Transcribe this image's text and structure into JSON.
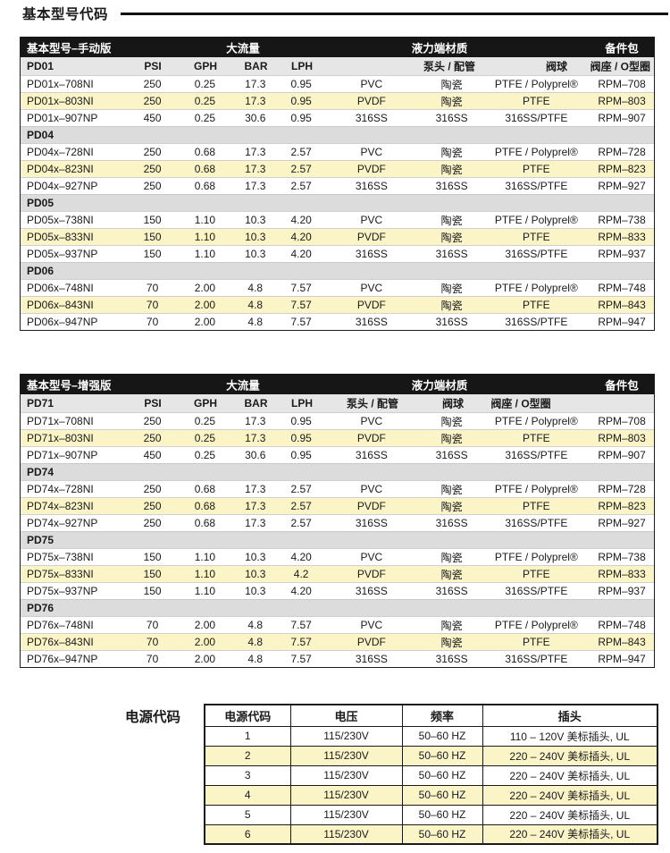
{
  "title": "基本型号代码",
  "colors": {
    "highlight_row": "#FAF4C6",
    "section_row": "#DCDCDC",
    "subheader_row": "#E6E6E6",
    "header_row": "#161616"
  },
  "model_tables": [
    {
      "header": {
        "name": "基本型号–手动版",
        "flow": "大流量",
        "material": "液力端材质",
        "spares": "备件包"
      },
      "subheader": {
        "model": "PD01",
        "psi": "PSI",
        "gph": "GPH",
        "bar": "BAR",
        "lph": "LPH",
        "head": "泵头 / 配管",
        "ball": "阀球",
        "seat": "阀座 / O型圈"
      },
      "groups": [
        {
          "section": null,
          "rows": [
            {
              "model": "PD01x–708NI",
              "psi": "250",
              "gph": "0.25",
              "bar": "17.3",
              "lph": "0.95",
              "head": "PVC",
              "ball": "陶瓷",
              "seat": "PTFE / Polyprel®",
              "rpm": "RPM–708",
              "highlight": false
            },
            {
              "model": "PD01x–803NI",
              "psi": "250",
              "gph": "0.25",
              "bar": "17.3",
              "lph": "0.95",
              "head": "PVDF",
              "ball": "陶瓷",
              "seat": "PTFE",
              "rpm": "RPM–803",
              "highlight": true
            },
            {
              "model": "PD01x–907NP",
              "psi": "450",
              "gph": "0.25",
              "bar": "30.6",
              "lph": "0.95",
              "head": "316SS",
              "ball": "316SS",
              "seat": "316SS/PTFE",
              "rpm": "RPM–907",
              "highlight": false
            }
          ]
        },
        {
          "section": "PD04",
          "rows": [
            {
              "model": "PD04x–728NI",
              "psi": "250",
              "gph": "0.68",
              "bar": "17.3",
              "lph": "2.57",
              "head": "PVC",
              "ball": "陶瓷",
              "seat": "PTFE / Polyprel®",
              "rpm": "RPM–728",
              "highlight": false
            },
            {
              "model": "PD04x–823NI",
              "psi": "250",
              "gph": "0.68",
              "bar": "17.3",
              "lph": "2.57",
              "head": "PVDF",
              "ball": "陶瓷",
              "seat": "PTFE",
              "rpm": "RPM–823",
              "highlight": true
            },
            {
              "model": "PD04x–927NP",
              "psi": "250",
              "gph": "0.68",
              "bar": "17.3",
              "lph": "2.57",
              "head": "316SS",
              "ball": "316SS",
              "seat": "316SS/PTFE",
              "rpm": "RPM–927",
              "highlight": false
            }
          ]
        },
        {
          "section": "PD05",
          "rows": [
            {
              "model": "PD05x–738NI",
              "psi": "150",
              "gph": "1.10",
              "bar": "10.3",
              "lph": "4.20",
              "head": "PVC",
              "ball": "陶瓷",
              "seat": "PTFE / Polyprel®",
              "rpm": "RPM–738",
              "highlight": false
            },
            {
              "model": "PD05x–833NI",
              "psi": "150",
              "gph": "1.10",
              "bar": "10.3",
              "lph": "4.20",
              "head": "PVDF",
              "ball": "陶瓷",
              "seat": "PTFE",
              "rpm": "RPM–833",
              "highlight": true
            },
            {
              "model": "PD05x–937NP",
              "psi": "150",
              "gph": "1.10",
              "bar": "10.3",
              "lph": "4.20",
              "head": "316SS",
              "ball": "316SS",
              "seat": "316SS/PTFE",
              "rpm": "RPM–937",
              "highlight": false
            }
          ]
        },
        {
          "section": "PD06",
          "rows": [
            {
              "model": "PD06x–748NI",
              "psi": "70",
              "gph": "2.00",
              "bar": "4.8",
              "lph": "7.57",
              "head": "PVC",
              "ball": "陶瓷",
              "seat": "PTFE / Polyprel®",
              "rpm": "RPM–748",
              "highlight": false
            },
            {
              "model": "PD06x–843NI",
              "psi": "70",
              "gph": "2.00",
              "bar": "4.8",
              "lph": "7.57",
              "head": "PVDF",
              "ball": "陶瓷",
              "seat": "PTFE",
              "rpm": "RPM–843",
              "highlight": true
            },
            {
              "model": "PD06x–947NP",
              "psi": "70",
              "gph": "2.00",
              "bar": "4.8",
              "lph": "7.57",
              "head": "316SS",
              "ball": "316SS",
              "seat": "316SS/PTFE",
              "rpm": "RPM–947",
              "highlight": false
            }
          ]
        }
      ]
    },
    {
      "header": {
        "name": "基本型号–增强版",
        "flow": "大流量",
        "material": "液力端材质",
        "spares": "备件包"
      },
      "subheader": {
        "model": "PD71",
        "psi": "PSI",
        "gph": "GPH",
        "bar": "BAR",
        "lph": "LPH",
        "head": "泵头 / 配管",
        "ball": "阀球",
        "seat": "阀座 / O型圈"
      },
      "groups": [
        {
          "section": null,
          "rows": [
            {
              "model": "PD71x–708NI",
              "psi": "250",
              "gph": "0.25",
              "bar": "17.3",
              "lph": "0.95",
              "head": "PVC",
              "ball": "陶瓷",
              "seat": "PTFE / Polyprel®",
              "rpm": "RPM–708",
              "highlight": false
            },
            {
              "model": "PD71x–803NI",
              "psi": "250",
              "gph": "0.25",
              "bar": "17.3",
              "lph": "0.95",
              "head": "PVDF",
              "ball": "陶瓷",
              "seat": "PTFE",
              "rpm": "RPM–803",
              "highlight": true
            },
            {
              "model": "PD71x–907NP",
              "psi": "450",
              "gph": "0.25",
              "bar": "30.6",
              "lph": "0.95",
              "head": "316SS",
              "ball": "316SS",
              "seat": "316SS/PTFE",
              "rpm": "RPM–907",
              "highlight": false
            }
          ]
        },
        {
          "section": "PD74",
          "rows": [
            {
              "model": "PD74x–728NI",
              "psi": "250",
              "gph": "0.68",
              "bar": "17.3",
              "lph": "2.57",
              "head": "PVC",
              "ball": "陶瓷",
              "seat": "PTFE / Polyprel®",
              "rpm": "RPM–728",
              "highlight": false
            },
            {
              "model": "PD74x–823NI",
              "psi": "250",
              "gph": "0.68",
              "bar": "17.3",
              "lph": "2.57",
              "head": "PVDF",
              "ball": "陶瓷",
              "seat": "PTFE",
              "rpm": "RPM–823",
              "highlight": true
            },
            {
              "model": "PD74x–927NP",
              "psi": "250",
              "gph": "0.68",
              "bar": "17.3",
              "lph": "2.57",
              "head": "316SS",
              "ball": "316SS",
              "seat": "316SS/PTFE",
              "rpm": "RPM–927",
              "highlight": false
            }
          ]
        },
        {
          "section": "PD75",
          "rows": [
            {
              "model": "PD75x–738NI",
              "psi": "150",
              "gph": "1.10",
              "bar": "10.3",
              "lph": "4.20",
              "head": "PVC",
              "ball": "陶瓷",
              "seat": "PTFE / Polyprel®",
              "rpm": "RPM–738",
              "highlight": false
            },
            {
              "model": "PD75x–833NI",
              "psi": "150",
              "gph": "1.10",
              "bar": "10.3",
              "lph": "4.2",
              "head": "PVDF",
              "ball": "陶瓷",
              "seat": "PTFE",
              "rpm": "RPM–833",
              "highlight": true
            },
            {
              "model": "PD75x–937NP",
              "psi": "150",
              "gph": "1.10",
              "bar": "10.3",
              "lph": "4.20",
              "head": "316SS",
              "ball": "316SS",
              "seat": "316SS/PTFE",
              "rpm": "RPM–937",
              "highlight": false
            }
          ]
        },
        {
          "section": "PD76",
          "rows": [
            {
              "model": "PD76x–748NI",
              "psi": "70",
              "gph": "2.00",
              "bar": "4.8",
              "lph": "7.57",
              "head": "PVC",
              "ball": "陶瓷",
              "seat": "PTFE / Polyprel®",
              "rpm": "RPM–748",
              "highlight": false
            },
            {
              "model": "PD76x–843NI",
              "psi": "70",
              "gph": "2.00",
              "bar": "4.8",
              "lph": "7.57",
              "head": "PVDF",
              "ball": "陶瓷",
              "seat": "PTFE",
              "rpm": "RPM–843",
              "highlight": true
            },
            {
              "model": "PD76x–947NP",
              "psi": "70",
              "gph": "2.00",
              "bar": "4.8",
              "lph": "7.57",
              "head": "316SS",
              "ball": "316SS",
              "seat": "316SS/PTFE",
              "rpm": "RPM–947",
              "highlight": false
            }
          ]
        }
      ]
    }
  ],
  "power_table": {
    "label": "电源代码",
    "headers": [
      "电源代码",
      "电压",
      "频率",
      "插头"
    ],
    "rows": [
      {
        "cells": [
          "1",
          "115/230V",
          "50–60 HZ",
          "110 – 120V 美标插头, UL"
        ],
        "highlight": false
      },
      {
        "cells": [
          "2",
          "115/230V",
          "50–60 HZ",
          "220 – 240V 美标插头, UL"
        ],
        "highlight": true
      },
      {
        "cells": [
          "3",
          "115/230V",
          "50–60 HZ",
          "220 – 240V 美标插头, UL"
        ],
        "highlight": false
      },
      {
        "cells": [
          "4",
          "115/230V",
          "50–60 HZ",
          "220 – 240V 美标插头, UL"
        ],
        "highlight": true
      },
      {
        "cells": [
          "5",
          "115/230V",
          "50–60 HZ",
          "220 – 240V 美标插头, UL"
        ],
        "highlight": false
      },
      {
        "cells": [
          "6",
          "115/230V",
          "50–60 HZ",
          "220 – 240V 美标插头, UL"
        ],
        "highlight": true
      }
    ]
  }
}
